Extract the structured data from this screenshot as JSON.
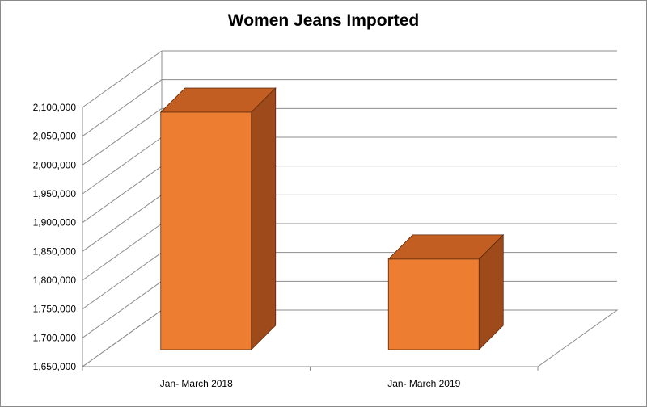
{
  "chart_data": {
    "type": "bar",
    "title": "Women Jeans Imported",
    "categories": [
      "Jan- March 2018",
      "Jan- March 2019"
    ],
    "values": [
      2072000,
      1817000
    ],
    "ylim": [
      1650000,
      2100000
    ],
    "yticks": [
      "1,650,000",
      "1,700,000",
      "1,750,000",
      "1,800,000",
      "1,850,000",
      "1,900,000",
      "1,950,000",
      "2,000,000",
      "2,050,000",
      "2,100,000"
    ],
    "grid": true,
    "legend": "none",
    "colors": {
      "front": "#ED7D31",
      "top": "#C25E22",
      "side": "#9E4A1B",
      "grid": "#8C8C8C"
    }
  }
}
